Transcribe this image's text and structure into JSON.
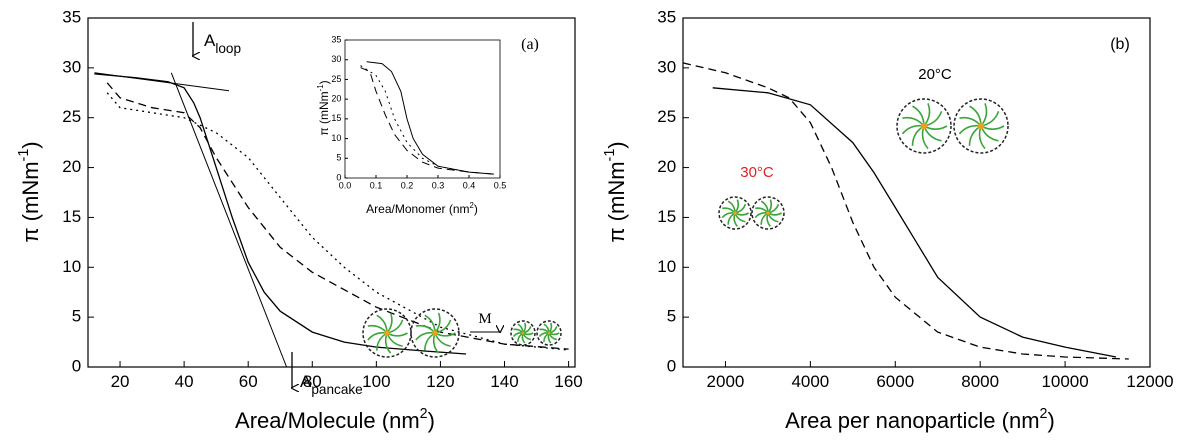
{
  "chart_data": [
    {
      "type": "line",
      "x_label": [
        "Area/Molecule (nm",
        "2",
        ")"
      ],
      "y_label": [
        "π (mNm",
        "-1",
        ")"
      ],
      "xlim": [
        10,
        162
      ],
      "ylim": [
        0,
        35
      ],
      "xticks": [
        20,
        40,
        60,
        80,
        100,
        120,
        140,
        160
      ],
      "yticks": [
        0,
        5,
        10,
        15,
        20,
        25,
        30,
        35
      ],
      "series": [
        {
          "color": "#000000",
          "dash": "solid",
          "x": [
            12,
            25,
            35,
            40,
            43,
            45,
            50,
            55,
            60,
            65,
            70,
            80,
            90,
            100,
            115,
            128
          ],
          "values": [
            29.4,
            29,
            28.6,
            28,
            26.5,
            25,
            20,
            15,
            10.5,
            7.5,
            5.6,
            3.5,
            2.5,
            2,
            1.6,
            1.3
          ]
        },
        {
          "color": "#000000",
          "dash": "dashed",
          "x": [
            16,
            20,
            30,
            40,
            45,
            50,
            60,
            70,
            80,
            100,
            120,
            140,
            160
          ],
          "values": [
            28.5,
            27,
            26,
            25.5,
            24,
            21,
            16,
            12,
            9.5,
            6,
            3.5,
            2.3,
            1.8
          ]
        },
        {
          "color": "#000000",
          "dash": "dotted",
          "x": [
            16,
            20,
            30,
            40,
            50,
            60,
            70,
            80,
            90,
            100,
            120,
            140,
            160
          ],
          "values": [
            27.5,
            26,
            25.5,
            25,
            23.5,
            21,
            17,
            13,
            10,
            7.5,
            4,
            2.3,
            1.7
          ]
        }
      ],
      "tangent_lines": [
        {
          "x": [
            12,
            54
          ],
          "values": [
            29.5,
            27.7
          ]
        },
        {
          "x": [
            36,
            72
          ],
          "values": [
            29.5,
            0
          ]
        }
      ],
      "annotations": [
        {
          "text": "(a)"
        },
        {
          "text": "A",
          "sub": "loop"
        },
        {
          "text": "A",
          "sub": "pancake"
        },
        {
          "text": "M"
        }
      ]
    },
    {
      "type": "line",
      "x_label": [
        "Area/Monomer (nm",
        "2",
        ")"
      ],
      "y_label": [
        "π (mNm",
        "-1",
        ")"
      ],
      "xlim": [
        0,
        0.5
      ],
      "ylim": [
        0,
        35
      ],
      "xticks": [
        {
          "value": 0,
          "label": "0.0"
        },
        {
          "value": 0.1,
          "label": "0.1"
        },
        {
          "value": 0.2,
          "label": "0.2"
        },
        {
          "value": 0.3,
          "label": "0.3"
        },
        {
          "value": 0.4,
          "label": "0.4"
        },
        {
          "value": 0.5,
          "label": "0.5"
        }
      ],
      "yticks": [
        0,
        5,
        10,
        15,
        20,
        25,
        30,
        35
      ],
      "series": [
        {
          "color": "#000000",
          "dash": "solid",
          "x": [
            0.07,
            0.12,
            0.15,
            0.18,
            0.2,
            0.22,
            0.25,
            0.3,
            0.4,
            0.48
          ],
          "values": [
            29.5,
            29,
            27,
            22,
            15,
            10,
            6,
            3,
            1.5,
            1
          ]
        },
        {
          "color": "#000000",
          "dash": "dashed",
          "x": [
            0.05,
            0.08,
            0.1,
            0.13,
            0.16,
            0.2,
            0.25,
            0.3,
            0.4,
            0.48
          ],
          "values": [
            28,
            27,
            22,
            16,
            11,
            7,
            4,
            2.5,
            1.5,
            1
          ]
        },
        {
          "color": "#000000",
          "dash": "dotted",
          "x": [
            0.05,
            0.1,
            0.13,
            0.16,
            0.2,
            0.25,
            0.3,
            0.4
          ],
          "values": [
            28.5,
            26,
            22,
            15,
            9,
            5,
            3,
            1.5
          ]
        }
      ]
    },
    {
      "type": "line",
      "x_label": [
        "Area per nanoparticle (nm",
        "2",
        ")"
      ],
      "y_label": [
        "π (mNm",
        "-1",
        ")"
      ],
      "xlim": [
        1000,
        12000
      ],
      "ylim": [
        0,
        35
      ],
      "xticks": [
        2000,
        4000,
        6000,
        8000,
        10000,
        12000
      ],
      "yticks": [
        0,
        5,
        10,
        15,
        20,
        25,
        30,
        35
      ],
      "series": [
        {
          "color": "#000000",
          "dash": "solid",
          "x": [
            1700,
            3000,
            4000,
            5000,
            5500,
            6000,
            6500,
            7000,
            8000,
            9000,
            10000,
            11200
          ],
          "values": [
            28,
            27.5,
            26.3,
            22.5,
            19.5,
            16,
            12.5,
            9,
            5,
            3,
            2,
            1
          ]
        },
        {
          "color": "#000000",
          "dash": "dashed",
          "x": [
            1000,
            2000,
            3000,
            3500,
            4000,
            4500,
            5000,
            5500,
            6000,
            7000,
            8000,
            9000,
            10000,
            11500
          ],
          "values": [
            30.5,
            29.5,
            28,
            27,
            24.5,
            20,
            14.5,
            10,
            7,
            3.5,
            2,
            1.3,
            1,
            0.8
          ]
        }
      ],
      "annotations": [
        {
          "text": "(b)"
        },
        {
          "text": "20°C"
        },
        {
          "text": "30°C",
          "color": "#e02020"
        }
      ]
    }
  ]
}
